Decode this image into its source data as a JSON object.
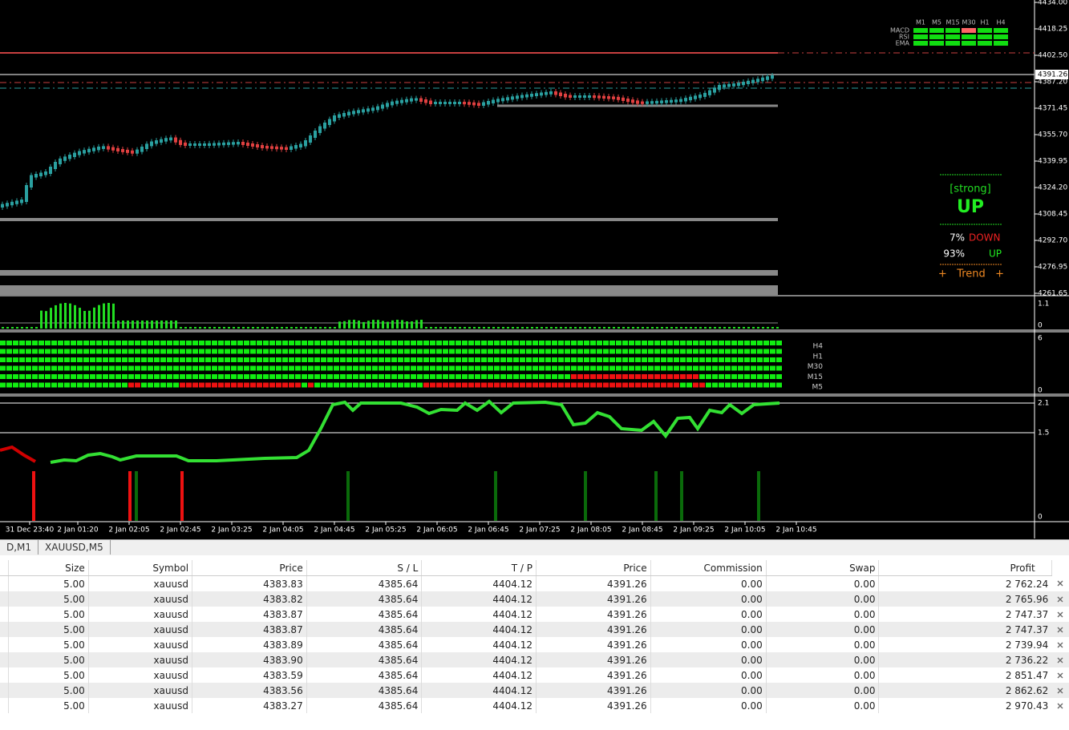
{
  "chart": {
    "price_axis": [
      "4434.00",
      "4418.25",
      "4402.50",
      "4387.20",
      "4371.45",
      "4355.70",
      "4339.95",
      "4324.20",
      "4308.45",
      "4292.70",
      "4276.95",
      "4261.65"
    ],
    "current_price": "4391.26",
    "time_axis": [
      "31 Dec 23:40",
      "2 Jan 01:20",
      "2 Jan 02:05",
      "2 Jan 02:45",
      "2 Jan 03:25",
      "2 Jan 04:05",
      "2 Jan 04:45",
      "2 Jan 05:25",
      "2 Jan 06:05",
      "2 Jan 06:45",
      "2 Jan 07:25",
      "2 Jan 08:05",
      "2 Jan 08:45",
      "2 Jan 09:25",
      "2 Jan 10:05",
      "2 Jan 10:45"
    ],
    "mtf_panel": {
      "timeframes": [
        "M1",
        "M5",
        "M15",
        "M30",
        "H1",
        "H4"
      ],
      "indicators": [
        "MACD",
        "RSI",
        "EMA"
      ]
    },
    "signal_panel": {
      "strength": "[strong]",
      "direction": "UP",
      "down_pct": "7%",
      "down_label": "DOWN",
      "up_pct": "93%",
      "up_label": "UP",
      "trend_label": "+   Trend   +"
    },
    "volume_axis": [
      "1.1",
      "0"
    ],
    "strength_axis": [
      "6",
      "0"
    ],
    "strength_rows": [
      "H4",
      "H1",
      "M30",
      "M15",
      "M5"
    ],
    "line_axis": [
      "2.1",
      "1.5",
      "0"
    ]
  },
  "symbol_tabs": [
    "D,M1",
    "XAUUSD,M5"
  ],
  "trade_table": {
    "headers": [
      "Size",
      "Symbol",
      "Price",
      "S / L",
      "T / P",
      "Price",
      "Commission",
      "Swap",
      "Profit"
    ],
    "rows": [
      [
        "5.00",
        "xauusd",
        "4383.83",
        "4385.64",
        "4404.12",
        "4391.26",
        "0.00",
        "0.00",
        "2 762.24"
      ],
      [
        "5.00",
        "xauusd",
        "4383.82",
        "4385.64",
        "4404.12",
        "4391.26",
        "0.00",
        "0.00",
        "2 765.96"
      ],
      [
        "5.00",
        "xauusd",
        "4383.87",
        "4385.64",
        "4404.12",
        "4391.26",
        "0.00",
        "0.00",
        "2 747.37"
      ],
      [
        "5.00",
        "xauusd",
        "4383.87",
        "4385.64",
        "4404.12",
        "4391.26",
        "0.00",
        "0.00",
        "2 747.37"
      ],
      [
        "5.00",
        "xauusd",
        "4383.89",
        "4385.64",
        "4404.12",
        "4391.26",
        "0.00",
        "0.00",
        "2 739.94"
      ],
      [
        "5.00",
        "xauusd",
        "4383.90",
        "4385.64",
        "4404.12",
        "4391.26",
        "0.00",
        "0.00",
        "2 736.22"
      ],
      [
        "5.00",
        "xauusd",
        "4383.59",
        "4385.64",
        "4404.12",
        "4391.26",
        "0.00",
        "0.00",
        "2 851.47"
      ],
      [
        "5.00",
        "xauusd",
        "4383.56",
        "4385.64",
        "4404.12",
        "4391.26",
        "0.00",
        "0.00",
        "2 862.62"
      ],
      [
        "5.00",
        "xauusd",
        "4383.27",
        "4385.64",
        "4404.12",
        "4391.26",
        "0.00",
        "0.00",
        "2 970.43"
      ]
    ]
  }
}
